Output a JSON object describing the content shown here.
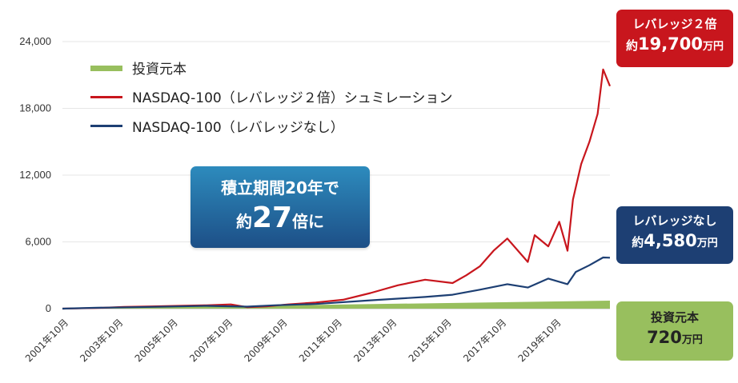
{
  "chart_data": {
    "type": "line",
    "title": "",
    "xlabel": "",
    "ylabel": "",
    "ylim": [
      0,
      24000
    ],
    "yticks": [
      "24,000",
      "18,000",
      "12,000",
      "6,000",
      "0"
    ],
    "ytick_values": [
      24000,
      18000,
      12000,
      6000,
      0
    ],
    "xticks": [
      "2001年10月",
      "2003年10月",
      "2005年10月",
      "2007年10月",
      "2009年10月",
      "2011年10月",
      "2013年10月",
      "2015年10月",
      "2017年10月",
      "2019年10月"
    ],
    "xtick_values": [
      2001.75,
      2003.75,
      2005.75,
      2007.75,
      2009.75,
      2011.75,
      2013.75,
      2015.75,
      2017.75,
      2019.75
    ],
    "xlim": [
      2001.75,
      2021.75
    ],
    "grid": true,
    "legend_position": "top-left",
    "series": [
      {
        "name": "投資元本",
        "color": "#98bf5e",
        "style": "area",
        "x": [
          2001.75,
          2021.75
        ],
        "values": [
          0,
          720
        ]
      },
      {
        "name": "NASDAQ-100（レバレッジ２倍）シュミレーション",
        "color": "#c8161d",
        "style": "line",
        "x": [
          2001.75,
          2003,
          2004,
          2005,
          2006,
          2007,
          2007.9,
          2008.5,
          2009.2,
          2010,
          2011,
          2012,
          2013,
          2014,
          2015,
          2016,
          2016.5,
          2017,
          2017.5,
          2018,
          2018.75,
          2019,
          2019.5,
          2019.9,
          2020.2,
          2020.4,
          2020.7,
          2021,
          2021.3,
          2021.5,
          2021.75
        ],
        "values": [
          0,
          60,
          150,
          200,
          250,
          300,
          380,
          130,
          200,
          380,
          550,
          800,
          1400,
          2100,
          2600,
          2300,
          3000,
          3800,
          5200,
          6300,
          4200,
          6600,
          5600,
          7800,
          5200,
          9800,
          13000,
          15000,
          17500,
          21500,
          20000
        ]
      },
      {
        "name": "NASDAQ-100（レバレッジなし）",
        "color": "#1d3f73",
        "style": "line",
        "x": [
          2001.75,
          2003,
          2005,
          2007,
          2008.5,
          2009.5,
          2011,
          2013,
          2015,
          2016,
          2017,
          2018,
          2018.75,
          2019.5,
          2020.2,
          2020.5,
          2021,
          2021.5,
          2021.75
        ],
        "values": [
          0,
          80,
          160,
          250,
          180,
          300,
          420,
          750,
          1050,
          1250,
          1700,
          2200,
          1900,
          2700,
          2200,
          3300,
          3900,
          4600,
          4580
        ]
      }
    ]
  },
  "legend": {
    "principal": "投資元本",
    "leverage2": "NASDAQ-100（レバレッジ２倍）シュミレーション",
    "noleverage": "NASDAQ-100（レバレッジなし）"
  },
  "headline": {
    "line1": "積立期間20年で",
    "line2_prefix": "約",
    "line2_num": "27",
    "line2_suffix": "倍に"
  },
  "callouts": {
    "leverage2": {
      "title": "レバレッジ２倍",
      "prefix": "約",
      "value": "19,700",
      "unit": "万円"
    },
    "noleverage": {
      "title": "レバレッジなし",
      "prefix": "約",
      "value": "4,580",
      "unit": "万円"
    },
    "principal": {
      "title": "投資元本",
      "value": "720",
      "unit": "万円"
    }
  }
}
